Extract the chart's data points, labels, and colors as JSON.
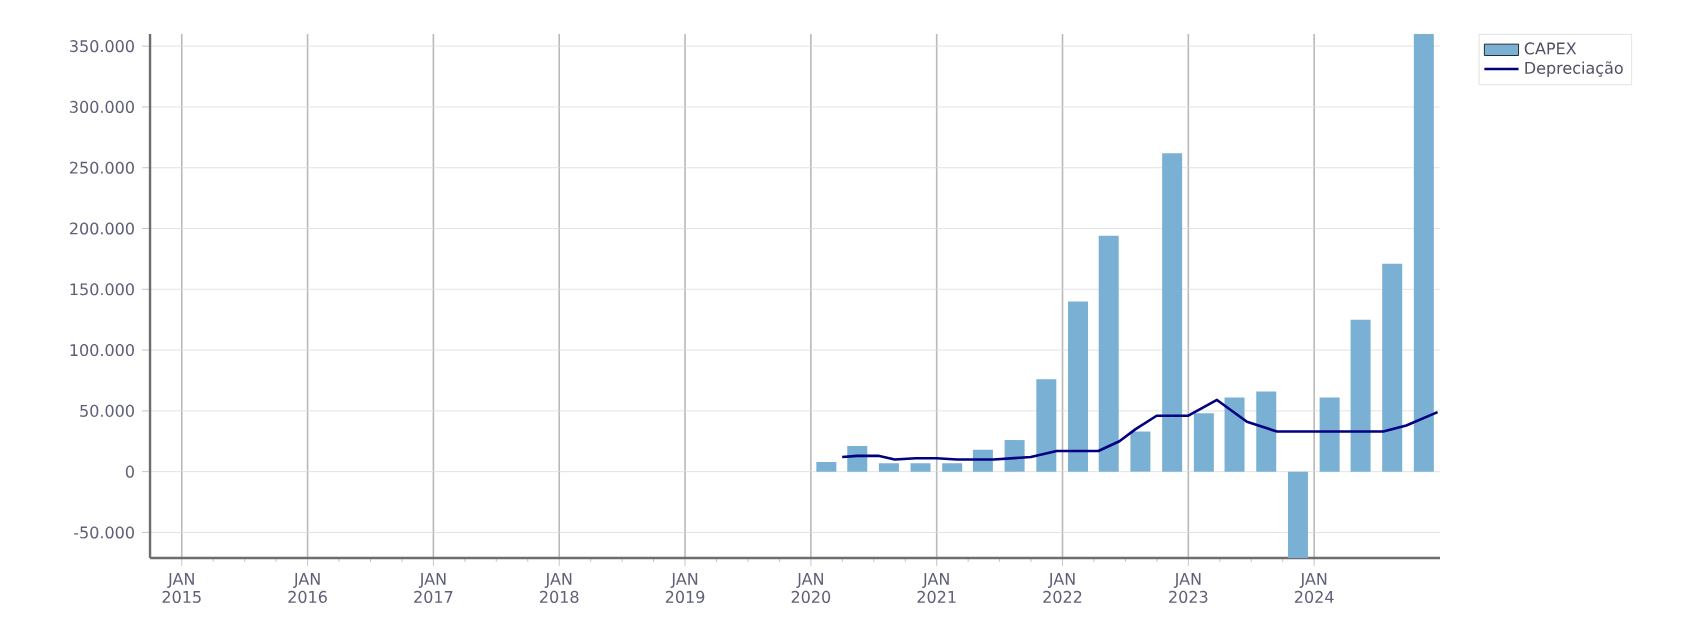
{
  "chart_data": {
    "type": "bar",
    "x": [
      "2020-02-15",
      "2020-05-15",
      "2020-08-15",
      "2020-11-15",
      "2021-02-15",
      "2021-05-15",
      "2021-08-15",
      "2021-11-15",
      "2022-02-15",
      "2022-05-15",
      "2022-08-15",
      "2022-11-15",
      "2023-02-15",
      "2023-05-15",
      "2023-08-15",
      "2023-11-15",
      "2024-02-15",
      "2024-05-15",
      "2024-08-15",
      "2024-11-15"
    ],
    "series": [
      {
        "name": "CAPEX",
        "color": "#7ab0d3",
        "values": [
          8000,
          21000,
          7000,
          7000,
          7000,
          18000,
          26000,
          76000,
          140000,
          194000,
          33000,
          262000,
          48000,
          61000,
          66000,
          -71000,
          61000,
          125000,
          171000,
          360000
        ]
      },
      {
        "name": "Depreciação",
        "type": "line",
        "color": "#000080",
        "x": [
          "2020-04-01",
          "2020-05-15",
          "2020-07-15",
          "2020-09-01",
          "2020-11-01",
          "2021-01-01",
          "2021-03-01",
          "2021-06-15",
          "2021-10-01",
          "2021-12-15",
          "2022-04-15",
          "2022-06-15",
          "2022-08-01",
          "2022-10-01",
          "2023-01-01",
          "2023-03-25",
          "2023-06-20",
          "2023-09-15",
          "2024-07-20",
          "2024-09-25",
          "2024-12-25"
        ],
        "values": [
          12000,
          13000,
          13000,
          10000,
          11000,
          11000,
          10000,
          10000,
          12000,
          17000,
          17000,
          25000,
          35000,
          46000,
          46000,
          59000,
          41000,
          33000,
          33000,
          38000,
          49000
        ]
      }
    ],
    "xlim": [
      "2014-10-01",
      "2025-01-01"
    ],
    "xticks": [
      {
        "value": "2015-01-01",
        "label": "JAN 2015"
      },
      {
        "value": "2016-01-01",
        "label": "JAN 2016"
      },
      {
        "value": "2017-01-01",
        "label": "JAN 2017"
      },
      {
        "value": "2018-01-01",
        "label": "JAN 2018"
      },
      {
        "value": "2019-01-01",
        "label": "JAN 2019"
      },
      {
        "value": "2020-01-01",
        "label": "JAN 2020"
      },
      {
        "value": "2021-01-01",
        "label": "JAN 2021"
      },
      {
        "value": "2022-01-01",
        "label": "JAN 2022"
      },
      {
        "value": "2023-01-01",
        "label": "JAN 2023"
      },
      {
        "value": "2024-01-01",
        "label": "JAN 2024"
      }
    ],
    "ylim": [
      -71000,
      360000
    ],
    "yticks": [
      {
        "value": -50000,
        "label": "-50.000"
      },
      {
        "value": 0,
        "label": "0"
      },
      {
        "value": 50000,
        "label": "50.000"
      },
      {
        "value": 100000,
        "label": "100.000"
      },
      {
        "value": 150000,
        "label": "150.000"
      },
      {
        "value": 200000,
        "label": "200.000"
      },
      {
        "value": 250000,
        "label": "250.000"
      },
      {
        "value": 300000,
        "label": "300.000"
      },
      {
        "value": 350000,
        "label": "350.000"
      }
    ],
    "grid": true,
    "legend": "top right",
    "marker": "none",
    "line_style": "solid"
  }
}
